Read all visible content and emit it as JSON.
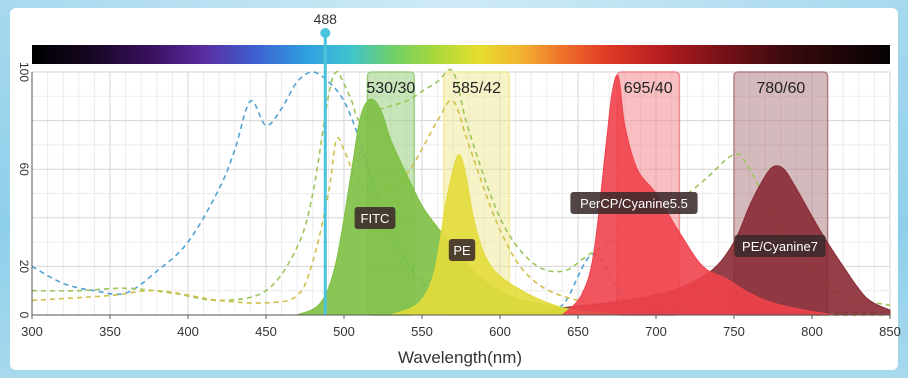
{
  "chart_data": {
    "type": "area",
    "xlabel": "Wavelength(nm)",
    "xlim": [
      300,
      850
    ],
    "ylim": [
      0,
      100
    ],
    "grid": true,
    "x_ticks": [
      "300",
      "350",
      "400",
      "450",
      "500",
      "550",
      "600",
      "650",
      "700",
      "750",
      "800",
      "850"
    ],
    "y_ticks": [
      "100",
      "60",
      "20",
      "0"
    ],
    "laser": {
      "label": "488",
      "x": 488,
      "color": "#4cc3dc"
    },
    "filters": [
      {
        "label": "530/30",
        "center": 530,
        "width": 30,
        "color": "#9bcf82"
      },
      {
        "label": "585/42",
        "center": 585,
        "width": 42,
        "color": "#f1ea9a"
      },
      {
        "label": "695/40",
        "center": 695,
        "width": 40,
        "color": "#f08a8e"
      },
      {
        "label": "780/60",
        "center": 780,
        "width": 60,
        "color": "#b07f86"
      }
    ],
    "series": [
      {
        "name": "FITC",
        "kind": "emission",
        "color": "#7cc043",
        "x": [
          470,
          485,
          495,
          505,
          510,
          515,
          520,
          525,
          530,
          540,
          550,
          560,
          575,
          590,
          610,
          640,
          680
        ],
        "values": [
          0,
          5,
          22,
          60,
          80,
          88,
          88,
          82,
          72,
          58,
          45,
          36,
          24,
          14,
          7,
          3,
          0
        ]
      },
      {
        "name": "PE",
        "kind": "emission",
        "color": "#e3dc3b",
        "x": [
          530,
          548,
          558,
          565,
          570,
          574,
          578,
          583,
          590,
          600,
          620,
          640,
          660
        ],
        "values": [
          0,
          5,
          18,
          45,
          60,
          66,
          58,
          40,
          25,
          16,
          8,
          3,
          0
        ]
      },
      {
        "name": "PerCP/Cyanine5.5",
        "kind": "emission",
        "color": "#f0424c",
        "x": [
          640,
          652,
          660,
          668,
          672,
          676,
          680,
          688,
          700,
          715,
          730,
          745,
          760,
          775,
          795,
          815
        ],
        "values": [
          0,
          8,
          25,
          70,
          92,
          98,
          78,
          60,
          50,
          34,
          20,
          15,
          9,
          5,
          2,
          0
        ]
      },
      {
        "name": "PE/Cyanine7",
        "kind": "emission",
        "color": "#8a2b34",
        "x": [
          560,
          600,
          640,
          680,
          710,
          735,
          750,
          760,
          768,
          775,
          782,
          790,
          805,
          820,
          835,
          850
        ],
        "values": [
          0,
          1,
          3,
          6,
          10,
          18,
          30,
          45,
          55,
          61,
          60,
          52,
          35,
          20,
          7,
          2
        ]
      },
      {
        "name": "",
        "kind": "excitation",
        "color": "#4fa3d6",
        "x": [
          300,
          320,
          340,
          360,
          380,
          400,
          420,
          430,
          440,
          450,
          460,
          470,
          480,
          490,
          500,
          510,
          520,
          540,
          560,
          580,
          600,
          620,
          640,
          660,
          680,
          700,
          720,
          740,
          760,
          780,
          800,
          820,
          850
        ],
        "values": [
          20,
          13,
          10,
          9,
          18,
          30,
          52,
          68,
          88,
          78,
          85,
          96,
          100,
          96,
          88,
          72,
          50,
          22,
          8,
          4,
          2,
          1,
          4,
          25,
          6,
          3,
          2,
          1,
          1,
          1,
          1,
          1,
          1
        ]
      },
      {
        "name": "",
        "kind": "excitation",
        "color": "#9cc55a",
        "x": [
          300,
          330,
          360,
          390,
          420,
          450,
          470,
          480,
          490,
          495,
          500,
          505,
          510,
          520,
          530,
          540,
          550,
          560,
          570,
          580,
          600,
          620,
          640,
          660,
          700,
          730,
          750,
          760,
          780,
          800,
          820,
          850
        ],
        "values": [
          10,
          10,
          11,
          9,
          6,
          10,
          28,
          50,
          90,
          100,
          95,
          88,
          80,
          84,
          86,
          88,
          92,
          96,
          100,
          76,
          40,
          22,
          18,
          26,
          40,
          55,
          66,
          60,
          35,
          18,
          8,
          4
        ]
      },
      {
        "name": "",
        "kind": "excitation",
        "color": "#d0c04a",
        "x": [
          300,
          350,
          380,
          420,
          450,
          470,
          480,
          490,
          495,
          500,
          505,
          510,
          520,
          540,
          560,
          570,
          580,
          600,
          620,
          650,
          700,
          750,
          800,
          850
        ],
        "values": [
          6,
          8,
          10,
          6,
          5,
          8,
          22,
          50,
          72,
          68,
          60,
          54,
          50,
          58,
          80,
          88,
          70,
          35,
          15,
          6,
          2,
          1,
          0,
          0
        ]
      }
    ]
  }
}
